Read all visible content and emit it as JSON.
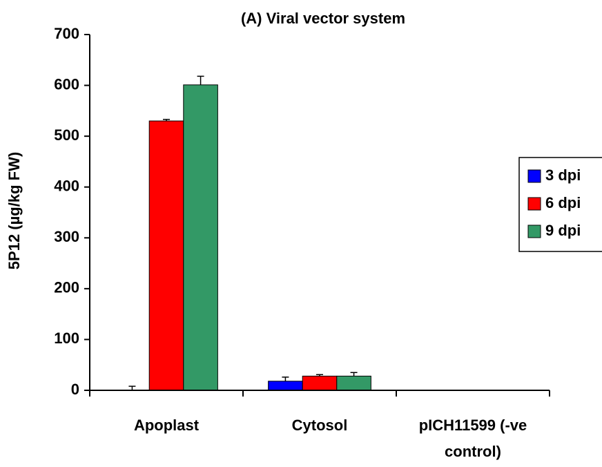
{
  "chart_data": {
    "type": "bar",
    "title": "(A) Viral vector system",
    "y_label": "5P12 (µg/kg FW)",
    "categories": [
      "Apoplast",
      "Cytosol",
      "pICH11599 (-ve control)"
    ],
    "series": [
      {
        "name": "3 dpi",
        "color": "#0000ff",
        "values": [
          0,
          18,
          0
        ],
        "errors": [
          8,
          8,
          0
        ]
      },
      {
        "name": "6 dpi",
        "color": "#ff0000",
        "values": [
          530,
          28,
          0
        ],
        "errors": [
          3,
          3,
          0
        ]
      },
      {
        "name": "9 dpi",
        "color": "#339966",
        "values": [
          601,
          28,
          0
        ],
        "errors": [
          17,
          7,
          0
        ]
      }
    ],
    "ylim": [
      0,
      700
    ],
    "yticks": [
      0,
      100,
      200,
      300,
      400,
      500,
      600,
      700
    ],
    "grid": false,
    "legend": "right"
  }
}
